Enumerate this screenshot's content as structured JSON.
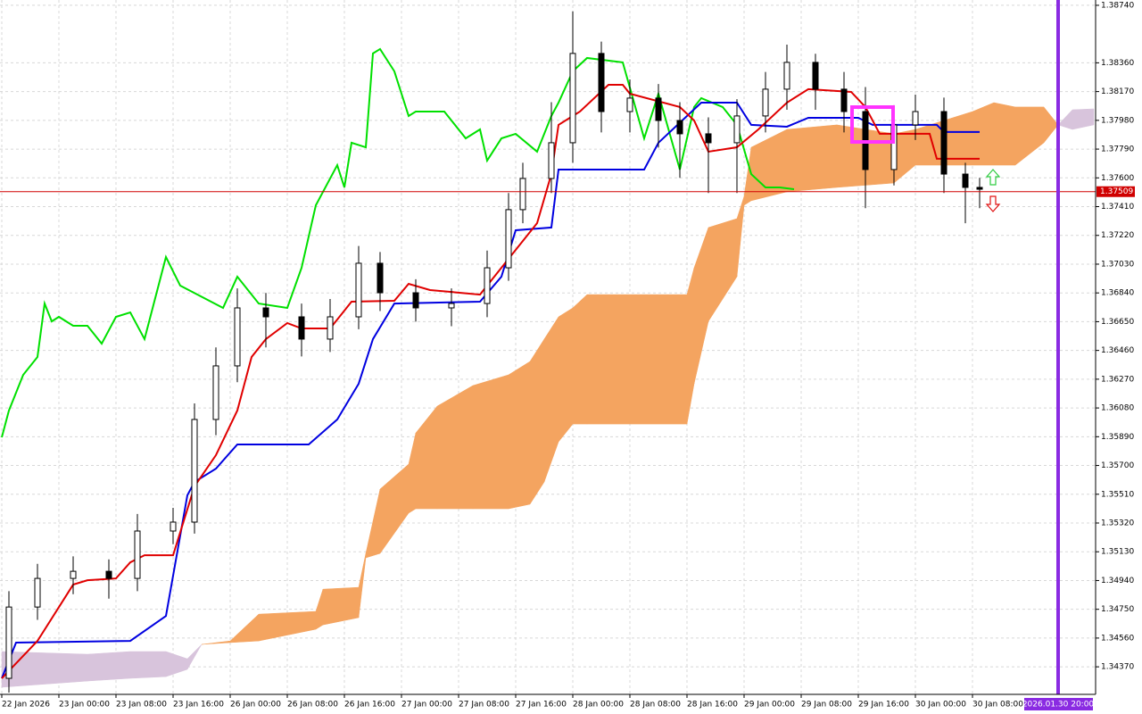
{
  "chart_data": {
    "type": "candlestick",
    "xlim": [
      -0.25,
      153.25
    ],
    "ylim": [
      1.34188,
      1.38775
    ],
    "grid": true,
    "xticks": [
      {
        "value": 0,
        "label": "22 Jan 2026"
      },
      {
        "value": 8,
        "label": "23 Jan 00:00"
      },
      {
        "value": 16,
        "label": "23 Jan 08:00"
      },
      {
        "value": 24,
        "label": "23 Jan 16:00"
      },
      {
        "value": 32,
        "label": "26 Jan 00:00"
      },
      {
        "value": 40,
        "label": "26 Jan 08:00"
      },
      {
        "value": 48,
        "label": "26 Jan 16:00"
      },
      {
        "value": 56,
        "label": "27 Jan 00:00"
      },
      {
        "value": 64,
        "label": "27 Jan 08:00"
      },
      {
        "value": 72,
        "label": "27 Jan 16:00"
      },
      {
        "value": 80,
        "label": "28 Jan 00:00"
      },
      {
        "value": 88,
        "label": "28 Jan 08:00"
      },
      {
        "value": 96,
        "label": "28 Jan 16:00"
      },
      {
        "value": 104,
        "label": "29 Jan 00:00"
      },
      {
        "value": 112,
        "label": "29 Jan 08:00"
      },
      {
        "value": 120,
        "label": "29 Jan 16:00"
      },
      {
        "value": 128,
        "label": "30 Jan 00:00"
      },
      {
        "value": 136,
        "label": "30 Jan 08:00"
      }
    ],
    "yticks": [
      {
        "value": 1.3874,
        "label": "1.38740"
      },
      {
        "value": 1.3836,
        "label": "1.38360"
      },
      {
        "value": 1.3817,
        "label": "1.38170"
      },
      {
        "value": 1.3798,
        "label": "1.37980"
      },
      {
        "value": 1.3779,
        "label": "1.37790"
      },
      {
        "value": 1.376,
        "label": "1.37600"
      },
      {
        "value": 1.3741,
        "label": "1.37410"
      },
      {
        "value": 1.3722,
        "label": "1.37220"
      },
      {
        "value": 1.3703,
        "label": "1.37030"
      },
      {
        "value": 1.3684,
        "label": "1.36840"
      },
      {
        "value": 1.3665,
        "label": "1.36650"
      },
      {
        "value": 1.3646,
        "label": "1.36460"
      },
      {
        "value": 1.3627,
        "label": "1.36270"
      },
      {
        "value": 1.3608,
        "label": "1.36080"
      },
      {
        "value": 1.3589,
        "label": "1.35890"
      },
      {
        "value": 1.357,
        "label": "1.35700"
      },
      {
        "value": 1.3551,
        "label": "1.35510"
      },
      {
        "value": 1.3532,
        "label": "1.35320"
      },
      {
        "value": 1.3513,
        "label": "1.35130"
      },
      {
        "value": 1.3494,
        "label": "1.34940"
      },
      {
        "value": 1.3475,
        "label": "1.34750"
      },
      {
        "value": 1.3456,
        "label": "1.34560"
      },
      {
        "value": 1.3437,
        "label": "1.34370"
      }
    ],
    "x": [
      1,
      5,
      10,
      15,
      19,
      24,
      27,
      30,
      33,
      37,
      42,
      46,
      50,
      53,
      58,
      63,
      68,
      71,
      73,
      77,
      80,
      84,
      88,
      92,
      95,
      99,
      103,
      107,
      110,
      114,
      118,
      121,
      125,
      128,
      132,
      135,
      137
    ],
    "open": [
      1.34294,
      1.34765,
      1.34954,
      1.35001,
      1.34954,
      1.35267,
      1.35326,
      1.36004,
      1.36358,
      1.36741,
      1.36682,
      1.36535,
      1.36682,
      1.37036,
      1.36841,
      1.36741,
      1.3677,
      1.37006,
      1.3739,
      1.37596,
      1.37832,
      1.38422,
      1.38038,
      1.38127,
      1.37979,
      1.37891,
      1.37832,
      1.38009,
      1.38186,
      1.38363,
      1.38186,
      1.38038,
      1.37655,
      1.3795,
      1.38038,
      1.37625,
      1.37537
    ],
    "high": [
      1.3487,
      1.3505,
      1.351,
      1.3508,
      1.3538,
      1.3542,
      1.3611,
      1.3648,
      1.3687,
      1.3684,
      1.3677,
      1.368,
      1.3715,
      1.3711,
      1.3693,
      1.3687,
      1.3712,
      1.375,
      1.377,
      1.381,
      1.387,
      1.385,
      1.3825,
      1.3822,
      1.381,
      1.38,
      1.3812,
      1.383,
      1.3848,
      1.3842,
      1.383,
      1.382,
      1.3808,
      1.3815,
      1.3813,
      1.377,
      1.376
    ],
    "low": [
      1.342,
      1.3468,
      1.3485,
      1.3482,
      1.3487,
      1.3518,
      1.3525,
      1.359,
      1.3625,
      1.3648,
      1.3642,
      1.3645,
      1.366,
      1.3672,
      1.3665,
      1.3662,
      1.3668,
      1.3692,
      1.373,
      1.375,
      1.377,
      1.379,
      1.379,
      1.378,
      1.376,
      1.375,
      1.375,
      1.379,
      1.3805,
      1.3805,
      1.379,
      1.374,
      1.3755,
      1.3785,
      1.375,
      1.373,
      1.374
    ],
    "close": [
      1.34765,
      1.34954,
      1.35001,
      1.34954,
      1.35267,
      1.35326,
      1.36004,
      1.36358,
      1.36741,
      1.36682,
      1.36535,
      1.36682,
      1.37036,
      1.36841,
      1.36741,
      1.3677,
      1.37006,
      1.3739,
      1.37596,
      1.37832,
      1.38422,
      1.38038,
      1.38127,
      1.37979,
      1.37891,
      1.37832,
      1.38009,
      1.38186,
      1.38363,
      1.38186,
      1.38038,
      1.37655,
      1.3795,
      1.38038,
      1.37625,
      1.37537,
      1.37525
    ],
    "lines": [
      {
        "color": "#00e000",
        "x": [
          0,
          1,
          3,
          5,
          6,
          7,
          8,
          10,
          12,
          14,
          16,
          18,
          20,
          23,
          25,
          31,
          33,
          36,
          40,
          42,
          44,
          47,
          48,
          49,
          51,
          52,
          53,
          55,
          57,
          58,
          62,
          65,
          67,
          68,
          70,
          72,
          75,
          77,
          78,
          80,
          82,
          87,
          90,
          92,
          95,
          97,
          98,
          101,
          103,
          105,
          107,
          109,
          111
        ],
        "values": [
          1.35886,
          1.36063,
          1.36299,
          1.36417,
          1.3677,
          1.36652,
          1.36682,
          1.36623,
          1.36623,
          1.36505,
          1.36682,
          1.36711,
          1.36535,
          1.37077,
          1.36888,
          1.36741,
          1.36947,
          1.3677,
          1.36741,
          1.37006,
          1.37419,
          1.37684,
          1.37537,
          1.37832,
          1.37802,
          1.38422,
          1.38451,
          1.38304,
          1.38009,
          1.38038,
          1.38038,
          1.37861,
          1.3792,
          1.37714,
          1.37861,
          1.37891,
          1.37773,
          1.38009,
          1.38097,
          1.38304,
          1.38392,
          1.38363,
          1.37861,
          1.38156,
          1.37655,
          1.38068,
          1.38127,
          1.38068,
          1.3795,
          1.37625,
          1.37537,
          1.37537,
          1.37525
        ]
      },
      {
        "color": "#0000e0",
        "x": [
          0,
          2,
          18,
          23,
          26,
          27,
          30,
          33,
          43,
          47,
          50,
          52,
          55,
          67,
          70,
          72,
          77,
          78,
          90,
          92,
          98,
          103,
          105,
          110,
          113,
          120,
          122,
          131,
          132,
          137
        ],
        "values": [
          1.34294,
          1.3453,
          1.34541,
          1.34706,
          1.35503,
          1.35591,
          1.35679,
          1.35839,
          1.35839,
          1.36004,
          1.3624,
          1.36535,
          1.3677,
          1.36782,
          1.36947,
          1.37254,
          1.37272,
          1.37655,
          1.37655,
          1.37832,
          1.38097,
          1.38097,
          1.3795,
          1.37938,
          1.37997,
          1.37997,
          1.3795,
          1.3795,
          1.37903,
          1.37903
        ]
      },
      {
        "color": "#e00000",
        "x": [
          0,
          5,
          10,
          12,
          16,
          18,
          20,
          24,
          27,
          30,
          33,
          35,
          37,
          40,
          42,
          46,
          49,
          55,
          57,
          60,
          67,
          69,
          71,
          75,
          77,
          78,
          81,
          85,
          87,
          88,
          95,
          97,
          99,
          103,
          106,
          110,
          113,
          119,
          121,
          123,
          130,
          131,
          137
        ],
        "values": [
          1.34294,
          1.34541,
          1.34913,
          1.34942,
          1.34954,
          1.3506,
          1.35107,
          1.35107,
          1.35562,
          1.35768,
          1.36063,
          1.36417,
          1.36535,
          1.36641,
          1.36605,
          1.36605,
          1.36782,
          1.36788,
          1.369,
          1.36859,
          1.36829,
          1.36947,
          1.37065,
          1.37301,
          1.37625,
          1.3795,
          1.38038,
          1.38215,
          1.38215,
          1.38156,
          1.38068,
          1.37979,
          1.37773,
          1.37802,
          1.3792,
          1.38097,
          1.38186,
          1.38168,
          1.38068,
          1.37891,
          1.37891,
          1.37726,
          1.37726
        ]
      }
    ],
    "cloud": {
      "bull_color": "#f4a460",
      "bear_color": "#d8c4dc",
      "x": [
        0,
        12,
        18,
        23,
        26,
        28,
        32,
        36,
        44,
        45,
        50,
        51,
        53,
        57,
        58,
        61,
        66,
        71,
        74,
        76,
        78,
        80,
        82,
        96,
        97,
        99,
        103,
        104,
        105,
        110,
        117,
        125,
        128,
        132,
        136,
        139,
        142,
        146,
        148,
        150,
        153
      ],
      "span_a": [
        1.34235,
        1.34276,
        1.34294,
        1.34305,
        1.34353,
        1.34518,
        1.34541,
        1.34718,
        1.34736,
        1.34883,
        1.34895,
        1.35119,
        1.35544,
        1.35709,
        1.35915,
        1.36092,
        1.36228,
        1.36299,
        1.36387,
        1.36535,
        1.36682,
        1.36741,
        1.36829,
        1.36829,
        1.37006,
        1.37272,
        1.37331,
        1.37478,
        1.37802,
        1.3792,
        1.3795,
        1.37891,
        1.3792,
        1.37979,
        1.38038,
        1.38097,
        1.38068,
        1.38068,
        1.3795,
        1.3792,
        1.3795
      ],
      "span_b": [
        1.34471,
        1.34453,
        1.34471,
        1.34471,
        1.34423,
        1.34518,
        1.3453,
        1.34541,
        1.34618,
        1.34647,
        1.34695,
        1.3509,
        1.35119,
        1.35385,
        1.35414,
        1.35414,
        1.35414,
        1.35414,
        1.35444,
        1.35591,
        1.35856,
        1.35974,
        1.35974,
        1.35974,
        1.3624,
        1.36652,
        1.36947,
        1.37419,
        1.37449,
        1.37508,
        1.37537,
        1.37566,
        1.37684,
        1.37684,
        1.37684,
        1.37684,
        1.37684,
        1.37832,
        1.3795,
        1.3805,
        1.38056
      ]
    },
    "price": {
      "value": 1.37509,
      "label": "1.37509",
      "color": "#d00000"
    },
    "cursor": {
      "x": 148,
      "label": "2026.01.30 20:00",
      "color": "#8a2be2"
    }
  }
}
